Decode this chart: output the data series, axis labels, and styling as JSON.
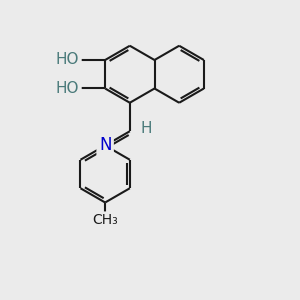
{
  "bg_color": "#ebebeb",
  "bond_color": "#1a1a1a",
  "bond_width": 1.5,
  "O_color": "#cc0000",
  "N_color": "#0000cc",
  "C_color": "#1a1a1a",
  "H_color": "#4a7a7a",
  "font_size_atom": 11,
  "xlim": [
    0,
    10
  ],
  "ylim": [
    0,
    10
  ]
}
